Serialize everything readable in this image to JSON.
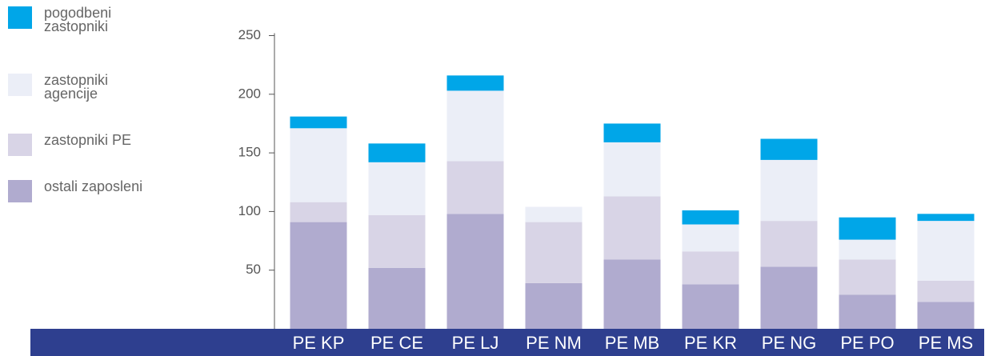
{
  "chart_data": {
    "type": "stacked_bar",
    "categories": [
      "PE KP",
      "PE CE",
      "PE LJ",
      "PE NM",
      "PE MB",
      "PE KR",
      "PE NG",
      "PE PO",
      "PE MS"
    ],
    "series": [
      {
        "name": "ostali zaposleni",
        "color": "#b0abcf",
        "values": [
          91,
          52,
          98,
          39,
          59,
          38,
          53,
          29,
          23
        ]
      },
      {
        "name": "zastopniki PE",
        "color": "#d8d4e6",
        "values": [
          17,
          45,
          45,
          52,
          54,
          28,
          39,
          30,
          18
        ]
      },
      {
        "name": "zastopniki agencije",
        "color": "#ebeef7",
        "values": [
          63,
          45,
          60,
          13,
          46,
          23,
          52,
          17,
          51
        ]
      },
      {
        "name": "pogodbeni zastopniki",
        "color": "#00a6e8",
        "values": [
          10,
          16,
          13,
          0,
          16,
          12,
          18,
          19,
          6
        ]
      }
    ],
    "ylim": [
      0,
      250
    ],
    "yticks": [
      50,
      100,
      150,
      200,
      250
    ]
  }
}
